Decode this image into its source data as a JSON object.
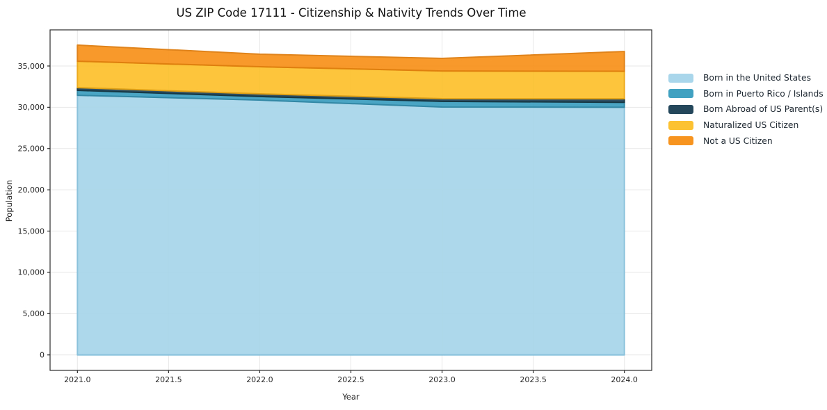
{
  "chart_data": {
    "type": "area",
    "stacked": true,
    "title": "US ZIP Code 17111 - Citizenship & Nativity Trends Over Time",
    "xlabel": "Year",
    "ylabel": "Population",
    "x": [
      2021,
      2022,
      2023,
      2024
    ],
    "series": [
      {
        "name": "Born in the United States",
        "color": "#a9d6ea",
        "edge_color": "#86c0dc",
        "values": [
          31450,
          30870,
          30030,
          30000
        ]
      },
      {
        "name": "Born in Puerto Rico / Islands",
        "color": "#41a1c1",
        "edge_color": "#2e85a3",
        "values": [
          600,
          430,
          680,
          600
        ]
      },
      {
        "name": "Born Abroad of US Parent(s)",
        "color": "#24475c",
        "edge_color": "#15333f",
        "values": [
          330,
          330,
          330,
          430
        ]
      },
      {
        "name": "Naturalized US Citizen",
        "color": "#fcc231",
        "edge_color": "#eca714",
        "values": [
          3200,
          3280,
          3360,
          3330
        ]
      },
      {
        "name": "Not a US Citizen",
        "color": "#f79420",
        "edge_color": "#de7d0e",
        "values": [
          1950,
          1520,
          1520,
          2400
        ]
      }
    ],
    "xlim": [
      2020.85,
      2024.15
    ],
    "ylim": [
      -1875,
      39375
    ],
    "xticks": [
      {
        "value": 2021.0,
        "label": "2021.0"
      },
      {
        "value": 2021.5,
        "label": "2021.5"
      },
      {
        "value": 2022.0,
        "label": "2022.0"
      },
      {
        "value": 2022.5,
        "label": "2022.5"
      },
      {
        "value": 2023.0,
        "label": "2023.0"
      },
      {
        "value": 2023.5,
        "label": "2023.5"
      },
      {
        "value": 2024.0,
        "label": "2024.0"
      }
    ],
    "yticks": [
      {
        "value": 0,
        "label": "0"
      },
      {
        "value": 5000,
        "label": "5,000"
      },
      {
        "value": 10000,
        "label": "10,000"
      },
      {
        "value": 15000,
        "label": "15,000"
      },
      {
        "value": 20000,
        "label": "20,000"
      },
      {
        "value": 25000,
        "label": "25,000"
      },
      {
        "value": 30000,
        "label": "30,000"
      },
      {
        "value": 35000,
        "label": "35,000"
      }
    ],
    "grid": true,
    "grid_color": "#e7e7e7",
    "spine_color": "#2b2b2b",
    "tick_label_color": "#262626",
    "legend_position": "right-outside"
  }
}
